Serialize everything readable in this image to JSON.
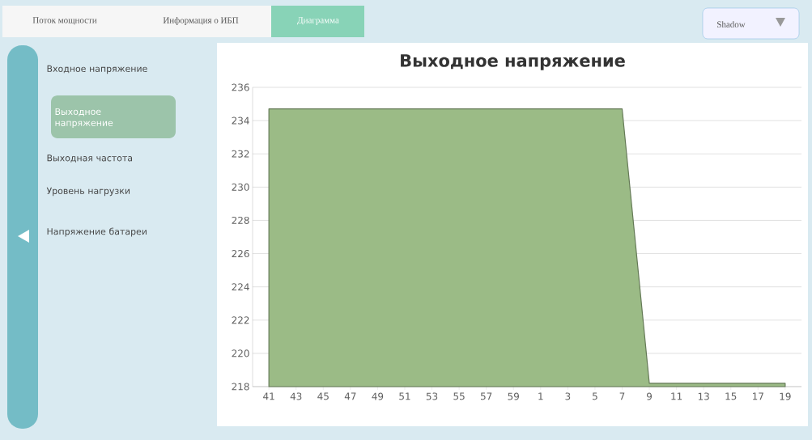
{
  "chart_data": {
    "type": "area",
    "title": "Выходное напряжение",
    "categories": [
      "41",
      "43",
      "45",
      "47",
      "49",
      "51",
      "53",
      "55",
      "57",
      "59",
      "1",
      "3",
      "5",
      "7",
      "9",
      "11",
      "13",
      "15",
      "17",
      "19"
    ],
    "values": [
      234.7,
      234.7,
      234.7,
      234.7,
      234.7,
      234.7,
      234.7,
      234.7,
      234.7,
      234.7,
      234.7,
      234.7,
      234.7,
      234.7,
      218.2,
      218.2,
      218.2,
      218.2,
      218.2,
      218.2
    ],
    "color": "#9bbb86",
    "ylim": [
      218,
      236
    ],
    "yticks": [
      218,
      220,
      222,
      224,
      226,
      228,
      230,
      232,
      234,
      236
    ],
    "grid": "y",
    "annotations": [
      "Поток мощности",
      "Информация о ИБП",
      "Диаграмма",
      "Shadow",
      "Входное напряжение",
      "Выходное напряжение",
      "Выходная частота",
      "Уровень нагрузки",
      "Напряжение батареи"
    ]
  }
}
